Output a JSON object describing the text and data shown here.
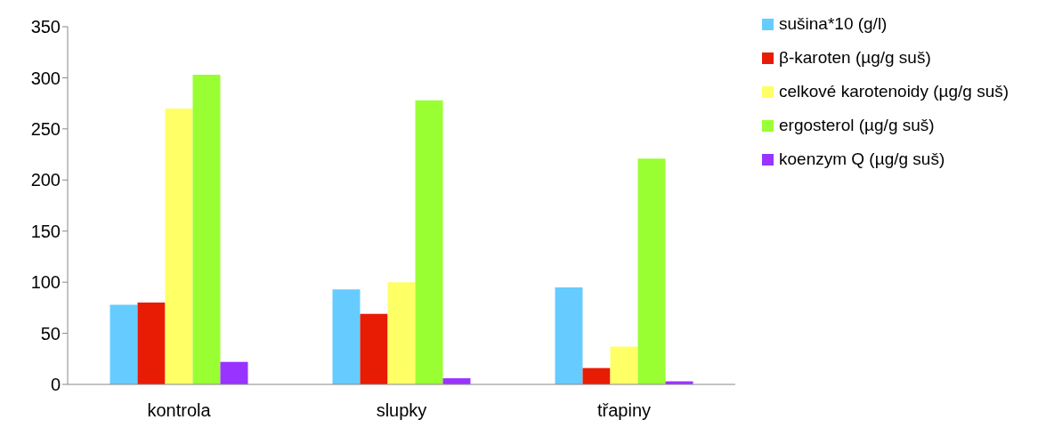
{
  "chart_data": {
    "type": "bar",
    "categories": [
      "kontrola",
      "slupky",
      "třapiny"
    ],
    "series": [
      {
        "name": "sušina*10 (g/l)",
        "color": "#66ccff",
        "values": [
          78,
          93,
          95
        ]
      },
      {
        "name": "β-karoten (µg/g suš)",
        "color": "#e81c04",
        "values": [
          80,
          69,
          16
        ]
      },
      {
        "name": "celkové karotenoidy (µg/g suš)",
        "color": "#ffff66",
        "values": [
          270,
          100,
          37
        ]
      },
      {
        "name": "ergosterol (µg/g suš)",
        "color": "#99ff33",
        "values": [
          303,
          278,
          221
        ]
      },
      {
        "name": "koenzym Q (µg/g suš)",
        "color": "#9933ff",
        "values": [
          22,
          6,
          3
        ]
      }
    ],
    "ylim": [
      0,
      350
    ],
    "yticks": [
      0,
      50,
      100,
      150,
      200,
      250,
      300,
      350
    ],
    "grid": false,
    "legend": "top right"
  }
}
